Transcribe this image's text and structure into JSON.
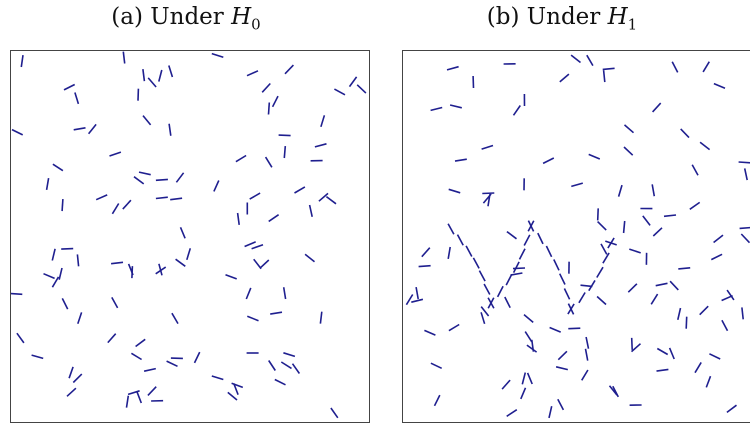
{
  "panel_a": {
    "caption_prefix": "(a) Under ",
    "caption_var": "H",
    "caption_sub": "0",
    "segment_color": "#1f1f8f",
    "segment_count": 110,
    "pattern": "none"
  },
  "panel_b": {
    "caption_prefix": "(b) Under ",
    "caption_var": "H",
    "caption_sub": "1",
    "segment_color": "#1f1f8f",
    "segment_count": 110,
    "pattern": "W"
  }
}
